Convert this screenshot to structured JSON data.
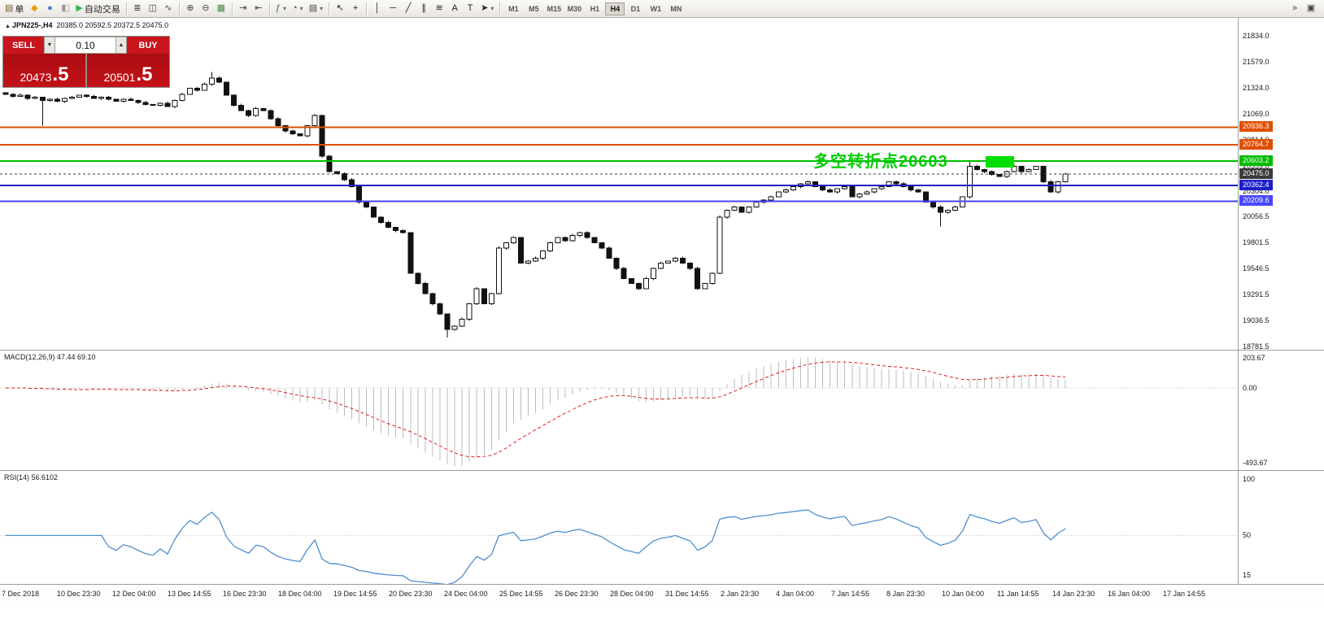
{
  "toolbar": {
    "buttons": [
      {
        "name": "new-order-button",
        "glyph": "▤",
        "color": "#7a5b2e",
        "label": "单"
      },
      {
        "name": "metaeditor-button",
        "glyph": "◆",
        "color": "#e3a008"
      },
      {
        "name": "profile-button",
        "glyph": "●",
        "color": "#4a7fc1"
      },
      {
        "name": "strategy-tester-button",
        "glyph": "◧",
        "color": "#9a9a9a"
      },
      {
        "name": "autotrading-button",
        "glyph": "▶",
        "color": "#2db84b",
        "label": "自动交易"
      },
      {
        "sep": true
      },
      {
        "name": "bar-chart-mode-button",
        "glyph": "≣",
        "color": "#444"
      },
      {
        "name": "candlestick-mode-button",
        "glyph": "◫",
        "color": "#444"
      },
      {
        "name": "line-chart-mode-button",
        "glyph": "∿",
        "color": "#444"
      },
      {
        "sep": true
      },
      {
        "name": "zoom-in-button",
        "glyph": "⊕",
        "color": "#444"
      },
      {
        "name": "zoom-out-button",
        "glyph": "⊖",
        "color": "#444"
      },
      {
        "name": "tile-windows-button",
        "glyph": "▦",
        "color": "#3a8f3a"
      },
      {
        "sep": true
      },
      {
        "name": "auto-scroll-button",
        "glyph": "⇥",
        "color": "#444"
      },
      {
        "name": "chart-shift-button",
        "glyph": "⇤",
        "color": "#444"
      },
      {
        "sep": true
      },
      {
        "name": "indicators-button",
        "glyph": "ƒ",
        "color": "#2a7d2a",
        "dropdown": true
      },
      {
        "name": "periods-button",
        "glyph": "◔",
        "color": "#444",
        "dropdown": true
      },
      {
        "name": "templates-button",
        "glyph": "▤",
        "color": "#444",
        "dropdown": true
      },
      {
        "sep": true
      },
      {
        "name": "cursor-button",
        "glyph": "↖",
        "color": "#222"
      },
      {
        "name": "crosshair-button",
        "glyph": "+",
        "color": "#222"
      },
      {
        "sep": true
      },
      {
        "name": "vertical-line-button",
        "glyph": "│",
        "color": "#222"
      },
      {
        "name": "horizontal-line-button",
        "glyph": "─",
        "color": "#222"
      },
      {
        "name": "trendline-button",
        "glyph": "╱",
        "color": "#222"
      },
      {
        "name": "equidistant-channel-button",
        "glyph": "∥",
        "color": "#222"
      },
      {
        "name": "fibonacci-button",
        "glyph": "≋",
        "color": "#222"
      },
      {
        "name": "text-button",
        "glyph": "A",
        "color": "#222"
      },
      {
        "name": "text-label-button",
        "glyph": "T",
        "color": "#222"
      },
      {
        "name": "arrows-button",
        "glyph": "➤",
        "color": "#222",
        "dropdown": true
      },
      {
        "sep": true
      }
    ],
    "timeframes": [
      "M1",
      "M5",
      "M15",
      "M30",
      "H1",
      "H4",
      "D1",
      "W1",
      "MN"
    ],
    "active_timeframe": "H4",
    "right_buttons": [
      {
        "name": "toolbar-overflow-button",
        "glyph": "»"
      },
      {
        "name": "window-layout-button",
        "glyph": "▣"
      }
    ]
  },
  "chart": {
    "title_icon_glyph": "▲",
    "title_symbol": "JPN225-,H4",
    "title_ohlc": "20385.0 20592.5 20372.5 20475.0",
    "trade_panel": {
      "sell_label": "SELL",
      "buy_label": "BUY",
      "volume": "0.10",
      "down_glyph": "▼",
      "up_glyph": "▲",
      "sell_price_int": "20473",
      "sell_price_frac": ".5",
      "buy_price_int": "20501",
      "buy_price_frac": ".5"
    },
    "annotation": {
      "text": "多空转折点20603",
      "color": "#00cc00"
    },
    "levels": [
      {
        "label": "20936.3",
        "price": 20936.3,
        "color": "#e04f00",
        "width": 2
      },
      {
        "label": "20764.7",
        "price": 20764.7,
        "color": "#e04f00",
        "width": 2
      },
      {
        "label": "20603.2",
        "price": 20603.2,
        "color": "#00bb00",
        "width": 2
      },
      {
        "label": "20475.0",
        "price": 20475.0,
        "color": "#3c3c3c",
        "width": 1,
        "style": "dashed"
      },
      {
        "label": "20362.4",
        "price": 20362.4,
        "color": "#1f1fc8",
        "width": 2
      },
      {
        "label": "20209.6",
        "price": 20209.6,
        "color": "#4646ff",
        "width": 2
      }
    ],
    "y_axis_labels": [
      "21834.0",
      "21579.0",
      "21324.0",
      "21069.0",
      "20814.0",
      "20559.0",
      "20304.0",
      "20056.5",
      "19801.5",
      "19546.5",
      "19291.5",
      "19036.5",
      "18781.5"
    ],
    "highlight_box_color": "#00dd00"
  },
  "indicators": {
    "macd": {
      "label": "MACD(12,26,9) 47.44 69.10",
      "params": [
        12,
        26,
        9
      ],
      "axis_labels": [
        "203.67",
        "0.00",
        "-493.67"
      ],
      "histogram_color": "#bdbdbd",
      "signal_color": "#e02020"
    },
    "rsi": {
      "label": "RSI(14) 56.6102",
      "period": 14,
      "axis_labels": [
        "100",
        "50",
        "15"
      ],
      "line_color": "#4f8fd0"
    }
  },
  "time_axis": [
    "7 Dec 2018",
    "10 Dec 23:30",
    "12 Dec 04:00",
    "13 Dec 14:55",
    "16 Dec 23:30",
    "18 Dec 04:00",
    "19 Dec 14:55",
    "20 Dec 23:30",
    "24 Dec 04:00",
    "25 Dec 14:55",
    "26 Dec 23:30",
    "28 Dec 04:00",
    "31 Dec 14:55",
    "2 Jan 23:30",
    "4 Jan 04:00",
    "7 Jan 14:55",
    "8 Jan 23:30",
    "10 Jan 04:00",
    "11 Jan 14:55",
    "14 Jan 23:30",
    "16 Jan 04:00",
    "17 Jan 14:55"
  ],
  "chart_data": {
    "type": "candlestick",
    "symbol": "JPN225-",
    "timeframe": "H4",
    "last_ohlc": [
      20385.0,
      20592.5,
      20372.5,
      20475.0
    ],
    "price_range": [
      18749,
      22010
    ],
    "closes": [
      21260,
      21240,
      21250,
      21220,
      21230,
      21200,
      21210,
      21190,
      21220,
      21230,
      21250,
      21240,
      21220,
      21230,
      21210,
      21190,
      21210,
      21200,
      21180,
      21160,
      21150,
      21170,
      21140,
      21200,
      21260,
      21320,
      21300,
      21360,
      21420,
      21380,
      21250,
      21150,
      21100,
      21050,
      21120,
      21100,
      21020,
      20950,
      20900,
      20870,
      20850,
      20950,
      21050,
      20650,
      20500,
      20480,
      20420,
      20350,
      20200,
      20150,
      20050,
      20000,
      19950,
      19920,
      19900,
      19500,
      19400,
      19300,
      19200,
      19100,
      18950,
      18980,
      19050,
      19200,
      19350,
      19200,
      19300,
      19750,
      19800,
      19850,
      19600,
      19620,
      19650,
      19720,
      19800,
      19850,
      19820,
      19870,
      19900,
      19850,
      19800,
      19750,
      19650,
      19550,
      19450,
      19400,
      19350,
      19450,
      19550,
      19600,
      19620,
      19650,
      19600,
      19550,
      19350,
      19400,
      19500,
      20050,
      20120,
      20150,
      20100,
      20150,
      20200,
      20220,
      20250,
      20300,
      20320,
      20350,
      20380,
      20400,
      20350,
      20320,
      20300,
      20330,
      20350,
      20250,
      20280,
      20300,
      20330,
      20350,
      20400,
      20380,
      20350,
      20320,
      20300,
      20200,
      20150,
      20100,
      20120,
      20150,
      20250,
      20550,
      20520,
      20500,
      20470,
      20450,
      20500,
      20550,
      20500,
      20520,
      20550,
      20400,
      20300,
      20400,
      20475
    ],
    "wick_overrides": {
      "5": {
        "low": 20950
      },
      "28": {
        "high": 21480
      },
      "60": {
        "low": 18870
      },
      "127": {
        "low": 19960
      },
      "131": {
        "high": 20610
      }
    }
  }
}
